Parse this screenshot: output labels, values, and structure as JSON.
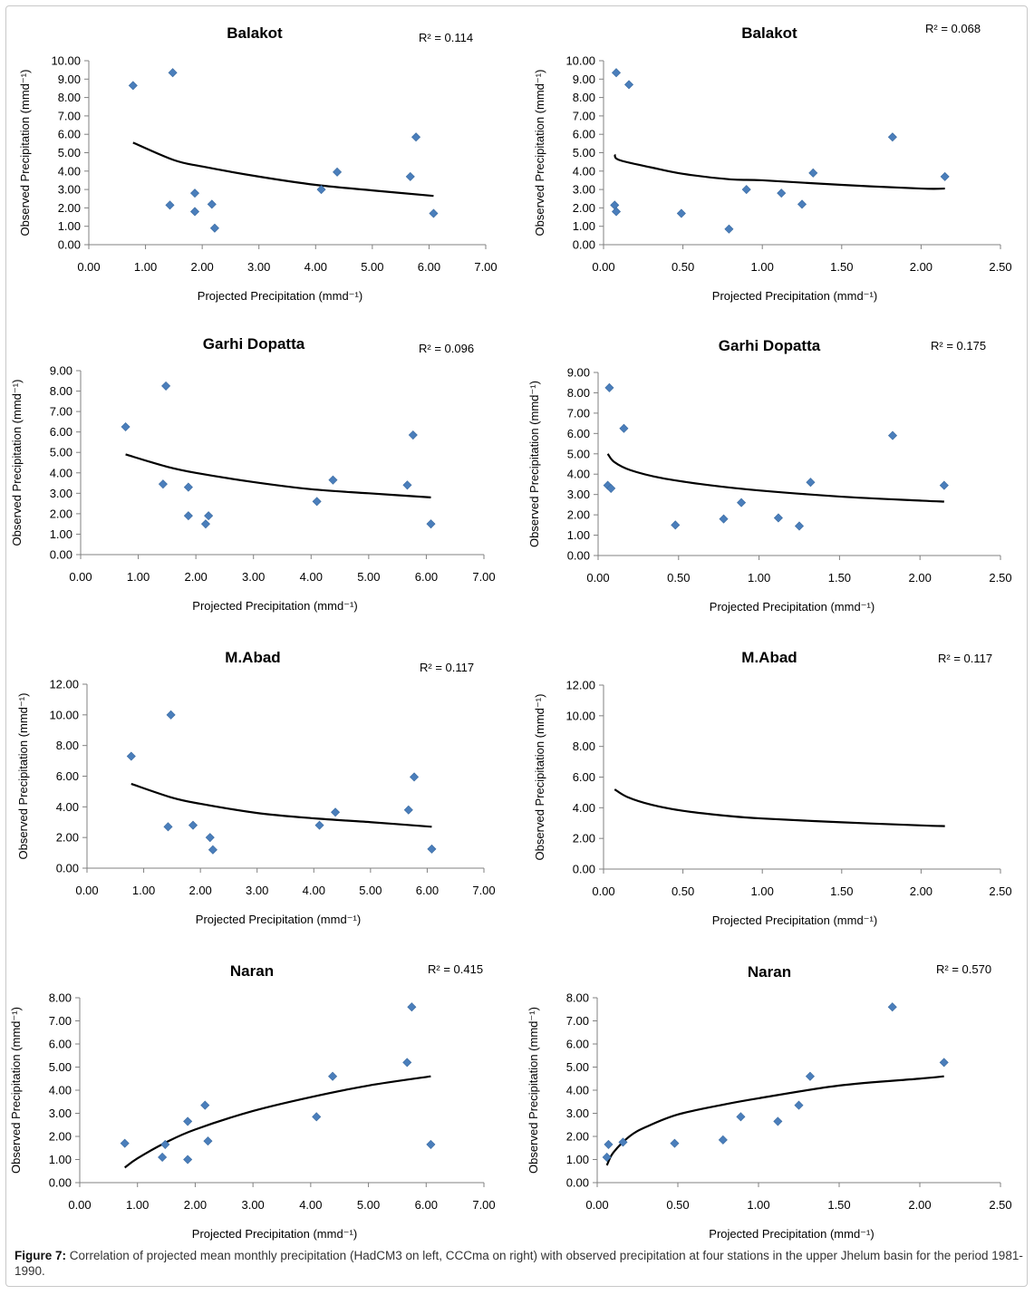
{
  "caption": {
    "label": "Figure 7:",
    "text": "Correlation of projected mean monthly precipitation (HadCM3 on left, CCCma on right) with observed precipitation at four stations in the upper Jhelum basin for the period 1981-1990."
  },
  "chart_data": [
    {
      "type": "scatter",
      "title": "Balakot",
      "r2_label": "R² = 0.114",
      "xlabel": "Projected Precipitation (mmd⁻¹)",
      "ylabel": "Observed Precipitation (mmd⁻¹)",
      "xlim": [
        0,
        7
      ],
      "xticks": [
        0,
        1,
        2,
        3,
        4,
        5,
        6,
        7
      ],
      "ylim": [
        0,
        10
      ],
      "yticks": [
        0,
        1,
        2,
        3,
        4,
        5,
        6,
        7,
        8,
        9,
        10
      ],
      "points": [
        [
          0.78,
          8.65
        ],
        [
          1.48,
          9.35
        ],
        [
          1.43,
          2.15
        ],
        [
          1.87,
          2.8
        ],
        [
          1.87,
          1.8
        ],
        [
          2.17,
          2.2
        ],
        [
          2.22,
          0.9
        ],
        [
          4.1,
          3.0
        ],
        [
          4.38,
          3.95
        ],
        [
          5.67,
          3.7
        ],
        [
          5.77,
          5.85
        ],
        [
          6.08,
          1.7
        ]
      ],
      "trendline": [
        [
          0.78,
          5.55
        ],
        [
          1.5,
          4.6
        ],
        [
          2.0,
          4.25
        ],
        [
          3.0,
          3.7
        ],
        [
          4.0,
          3.25
        ],
        [
          5.0,
          2.95
        ],
        [
          6.08,
          2.65
        ]
      ]
    },
    {
      "type": "scatter",
      "title": "Balakot",
      "r2_label": "R² = 0.068",
      "xlabel": "Projected Precipitation (mmd⁻¹)",
      "ylabel": "Observed Precipitation (mmd⁻¹)",
      "xlim": [
        0,
        2.5
      ],
      "xticks": [
        0,
        0.5,
        1.0,
        1.5,
        2.0,
        2.5
      ],
      "ylim": [
        0,
        10
      ],
      "yticks": [
        0,
        1,
        2,
        3,
        4,
        5,
        6,
        7,
        8,
        9,
        10
      ],
      "points": [
        [
          0.08,
          9.35
        ],
        [
          0.16,
          8.7
        ],
        [
          0.07,
          2.15
        ],
        [
          0.08,
          1.8
        ],
        [
          0.49,
          1.7
        ],
        [
          0.79,
          0.85
        ],
        [
          0.9,
          3.0
        ],
        [
          1.12,
          2.8
        ],
        [
          1.25,
          2.2
        ],
        [
          1.32,
          3.9
        ],
        [
          1.82,
          5.85
        ],
        [
          2.15,
          3.7
        ]
      ],
      "trendline": [
        [
          0.07,
          4.9
        ],
        [
          0.1,
          4.6
        ],
        [
          0.3,
          4.2
        ],
        [
          0.5,
          3.85
        ],
        [
          0.8,
          3.55
        ],
        [
          1.0,
          3.5
        ],
        [
          1.5,
          3.25
        ],
        [
          2.0,
          3.05
        ],
        [
          2.15,
          3.05
        ]
      ]
    },
    {
      "type": "scatter",
      "title": "Garhi Dopatta",
      "r2_label": "R² = 0.096",
      "xlabel": "Projected Precipitation (mmd⁻¹)",
      "ylabel": "Observed Precipitation (mmd⁻¹)",
      "xlim": [
        0,
        7
      ],
      "xticks": [
        0,
        1,
        2,
        3,
        4,
        5,
        6,
        7
      ],
      "ylim": [
        0,
        9
      ],
      "yticks": [
        0,
        1,
        2,
        3,
        4,
        5,
        6,
        7,
        8,
        9
      ],
      "points": [
        [
          0.78,
          6.25
        ],
        [
          1.48,
          8.25
        ],
        [
          1.43,
          3.45
        ],
        [
          1.87,
          3.3
        ],
        [
          1.87,
          1.9
        ],
        [
          2.17,
          1.5
        ],
        [
          2.22,
          1.9
        ],
        [
          4.1,
          2.6
        ],
        [
          4.38,
          3.65
        ],
        [
          5.67,
          3.4
        ],
        [
          5.77,
          5.85
        ],
        [
          6.08,
          1.5
        ]
      ],
      "trendline": [
        [
          0.78,
          4.9
        ],
        [
          1.5,
          4.3
        ],
        [
          2.0,
          4.0
        ],
        [
          3.0,
          3.55
        ],
        [
          4.0,
          3.2
        ],
        [
          5.0,
          3.0
        ],
        [
          6.08,
          2.8
        ]
      ]
    },
    {
      "type": "scatter",
      "title": "Garhi Dopatta",
      "r2_label": "R² = 0.175",
      "xlabel": "Projected Precipitation (mmd⁻¹)",
      "ylabel": "Observed Precipitation (mmd⁻¹)",
      "xlim": [
        0,
        2.5
      ],
      "xticks": [
        0,
        0.5,
        1.0,
        1.5,
        2.0,
        2.5
      ],
      "ylim": [
        0,
        9
      ],
      "yticks": [
        0,
        1,
        2,
        3,
        4,
        5,
        6,
        7,
        8,
        9
      ],
      "points": [
        [
          0.07,
          8.25
        ],
        [
          0.16,
          6.25
        ],
        [
          0.06,
          3.45
        ],
        [
          0.08,
          3.3
        ],
        [
          0.48,
          1.5
        ],
        [
          0.78,
          1.8
        ],
        [
          0.89,
          2.6
        ],
        [
          1.12,
          1.85
        ],
        [
          1.25,
          1.45
        ],
        [
          1.32,
          3.6
        ],
        [
          1.83,
          5.9
        ],
        [
          2.15,
          3.45
        ]
      ],
      "trendline": [
        [
          0.06,
          5.0
        ],
        [
          0.1,
          4.6
        ],
        [
          0.2,
          4.2
        ],
        [
          0.4,
          3.8
        ],
        [
          0.7,
          3.45
        ],
        [
          1.0,
          3.2
        ],
        [
          1.5,
          2.9
        ],
        [
          2.0,
          2.7
        ],
        [
          2.15,
          2.65
        ]
      ]
    },
    {
      "type": "scatter",
      "title": "M.Abad",
      "r2_label": "R² = 0.117",
      "xlabel": "Projected Precipitation (mmd⁻¹)",
      "ylabel": "Observed Precipitation (mmd⁻¹)",
      "xlim": [
        0,
        7
      ],
      "xticks": [
        0,
        1,
        2,
        3,
        4,
        5,
        6,
        7
      ],
      "ylim": [
        0,
        12
      ],
      "yticks": [
        0,
        2,
        4,
        6,
        8,
        10,
        12
      ],
      "points": [
        [
          0.78,
          7.3
        ],
        [
          1.48,
          10.0
        ],
        [
          1.43,
          2.7
        ],
        [
          1.87,
          2.8
        ],
        [
          2.17,
          2.0
        ],
        [
          2.22,
          1.2
        ],
        [
          4.1,
          2.8
        ],
        [
          4.38,
          3.65
        ],
        [
          5.67,
          3.8
        ],
        [
          5.77,
          5.95
        ],
        [
          6.08,
          1.25
        ]
      ],
      "trendline": [
        [
          0.78,
          5.5
        ],
        [
          1.5,
          4.6
        ],
        [
          2.0,
          4.2
        ],
        [
          3.0,
          3.6
        ],
        [
          4.0,
          3.25
        ],
        [
          5.0,
          3.0
        ],
        [
          6.08,
          2.7
        ]
      ]
    },
    {
      "type": "scatter",
      "title": "M.Abad",
      "r2_label": "R² = 0.117",
      "xlabel": "Projected Precipitation (mmd⁻¹)",
      "ylabel": "Observed Precipitation (mmd⁻¹)",
      "xlim": [
        0,
        2.5
      ],
      "xticks": [
        0,
        0.5,
        1.0,
        1.5,
        2.0,
        2.5
      ],
      "ylim": [
        0,
        12
      ],
      "yticks": [
        0,
        2,
        4,
        6,
        8,
        10,
        12
      ],
      "points": [],
      "trendline": [
        [
          0.07,
          5.2
        ],
        [
          0.15,
          4.7
        ],
        [
          0.3,
          4.2
        ],
        [
          0.5,
          3.8
        ],
        [
          0.8,
          3.45
        ],
        [
          1.0,
          3.3
        ],
        [
          1.5,
          3.05
        ],
        [
          2.0,
          2.85
        ],
        [
          2.15,
          2.8
        ]
      ]
    },
    {
      "type": "scatter",
      "title": "Naran",
      "r2_label": "R² = 0.415",
      "xlabel": "Projected Precipitation (mmd⁻¹)",
      "ylabel": "Observed Precipitation (mmd⁻¹)",
      "xlim": [
        0,
        7
      ],
      "xticks": [
        0,
        1,
        2,
        3,
        4,
        5,
        6,
        7
      ],
      "ylim": [
        0,
        8
      ],
      "yticks": [
        0,
        1,
        2,
        3,
        4,
        5,
        6,
        7,
        8
      ],
      "points": [
        [
          0.78,
          1.7
        ],
        [
          1.48,
          1.65
        ],
        [
          1.43,
          1.1
        ],
        [
          1.87,
          2.65
        ],
        [
          1.87,
          1.0
        ],
        [
          2.17,
          3.35
        ],
        [
          2.22,
          1.8
        ],
        [
          4.1,
          2.85
        ],
        [
          4.38,
          4.6
        ],
        [
          5.67,
          5.2
        ],
        [
          5.75,
          7.6
        ],
        [
          6.08,
          1.65
        ]
      ],
      "trendline": [
        [
          0.78,
          0.65
        ],
        [
          1.0,
          1.05
        ],
        [
          1.5,
          1.75
        ],
        [
          2.0,
          2.3
        ],
        [
          3.0,
          3.1
        ],
        [
          4.0,
          3.7
        ],
        [
          5.0,
          4.2
        ],
        [
          6.08,
          4.6
        ]
      ]
    },
    {
      "type": "scatter",
      "title": "Naran",
      "r2_label": "R² = 0.570",
      "xlabel": "Projected Precipitation (mmd⁻¹)",
      "ylabel": "Observed Precipitation (mmd⁻¹)",
      "xlim": [
        0,
        2.5
      ],
      "xticks": [
        0,
        0.5,
        1.0,
        1.5,
        2.0,
        2.5
      ],
      "ylim": [
        0,
        8
      ],
      "yticks": [
        0,
        1,
        2,
        3,
        4,
        5,
        6,
        7,
        8
      ],
      "points": [
        [
          0.07,
          1.65
        ],
        [
          0.06,
          1.1
        ],
        [
          0.16,
          1.75
        ],
        [
          0.48,
          1.7
        ],
        [
          0.78,
          1.85
        ],
        [
          0.89,
          2.85
        ],
        [
          1.12,
          2.65
        ],
        [
          1.25,
          3.35
        ],
        [
          1.32,
          4.6
        ],
        [
          1.83,
          7.6
        ],
        [
          2.15,
          5.2
        ]
      ],
      "trendline": [
        [
          0.06,
          0.75
        ],
        [
          0.1,
          1.3
        ],
        [
          0.2,
          2.0
        ],
        [
          0.3,
          2.4
        ],
        [
          0.5,
          2.95
        ],
        [
          0.8,
          3.4
        ],
        [
          1.0,
          3.65
        ],
        [
          1.5,
          4.2
        ],
        [
          2.0,
          4.5
        ],
        [
          2.15,
          4.6
        ]
      ]
    }
  ]
}
